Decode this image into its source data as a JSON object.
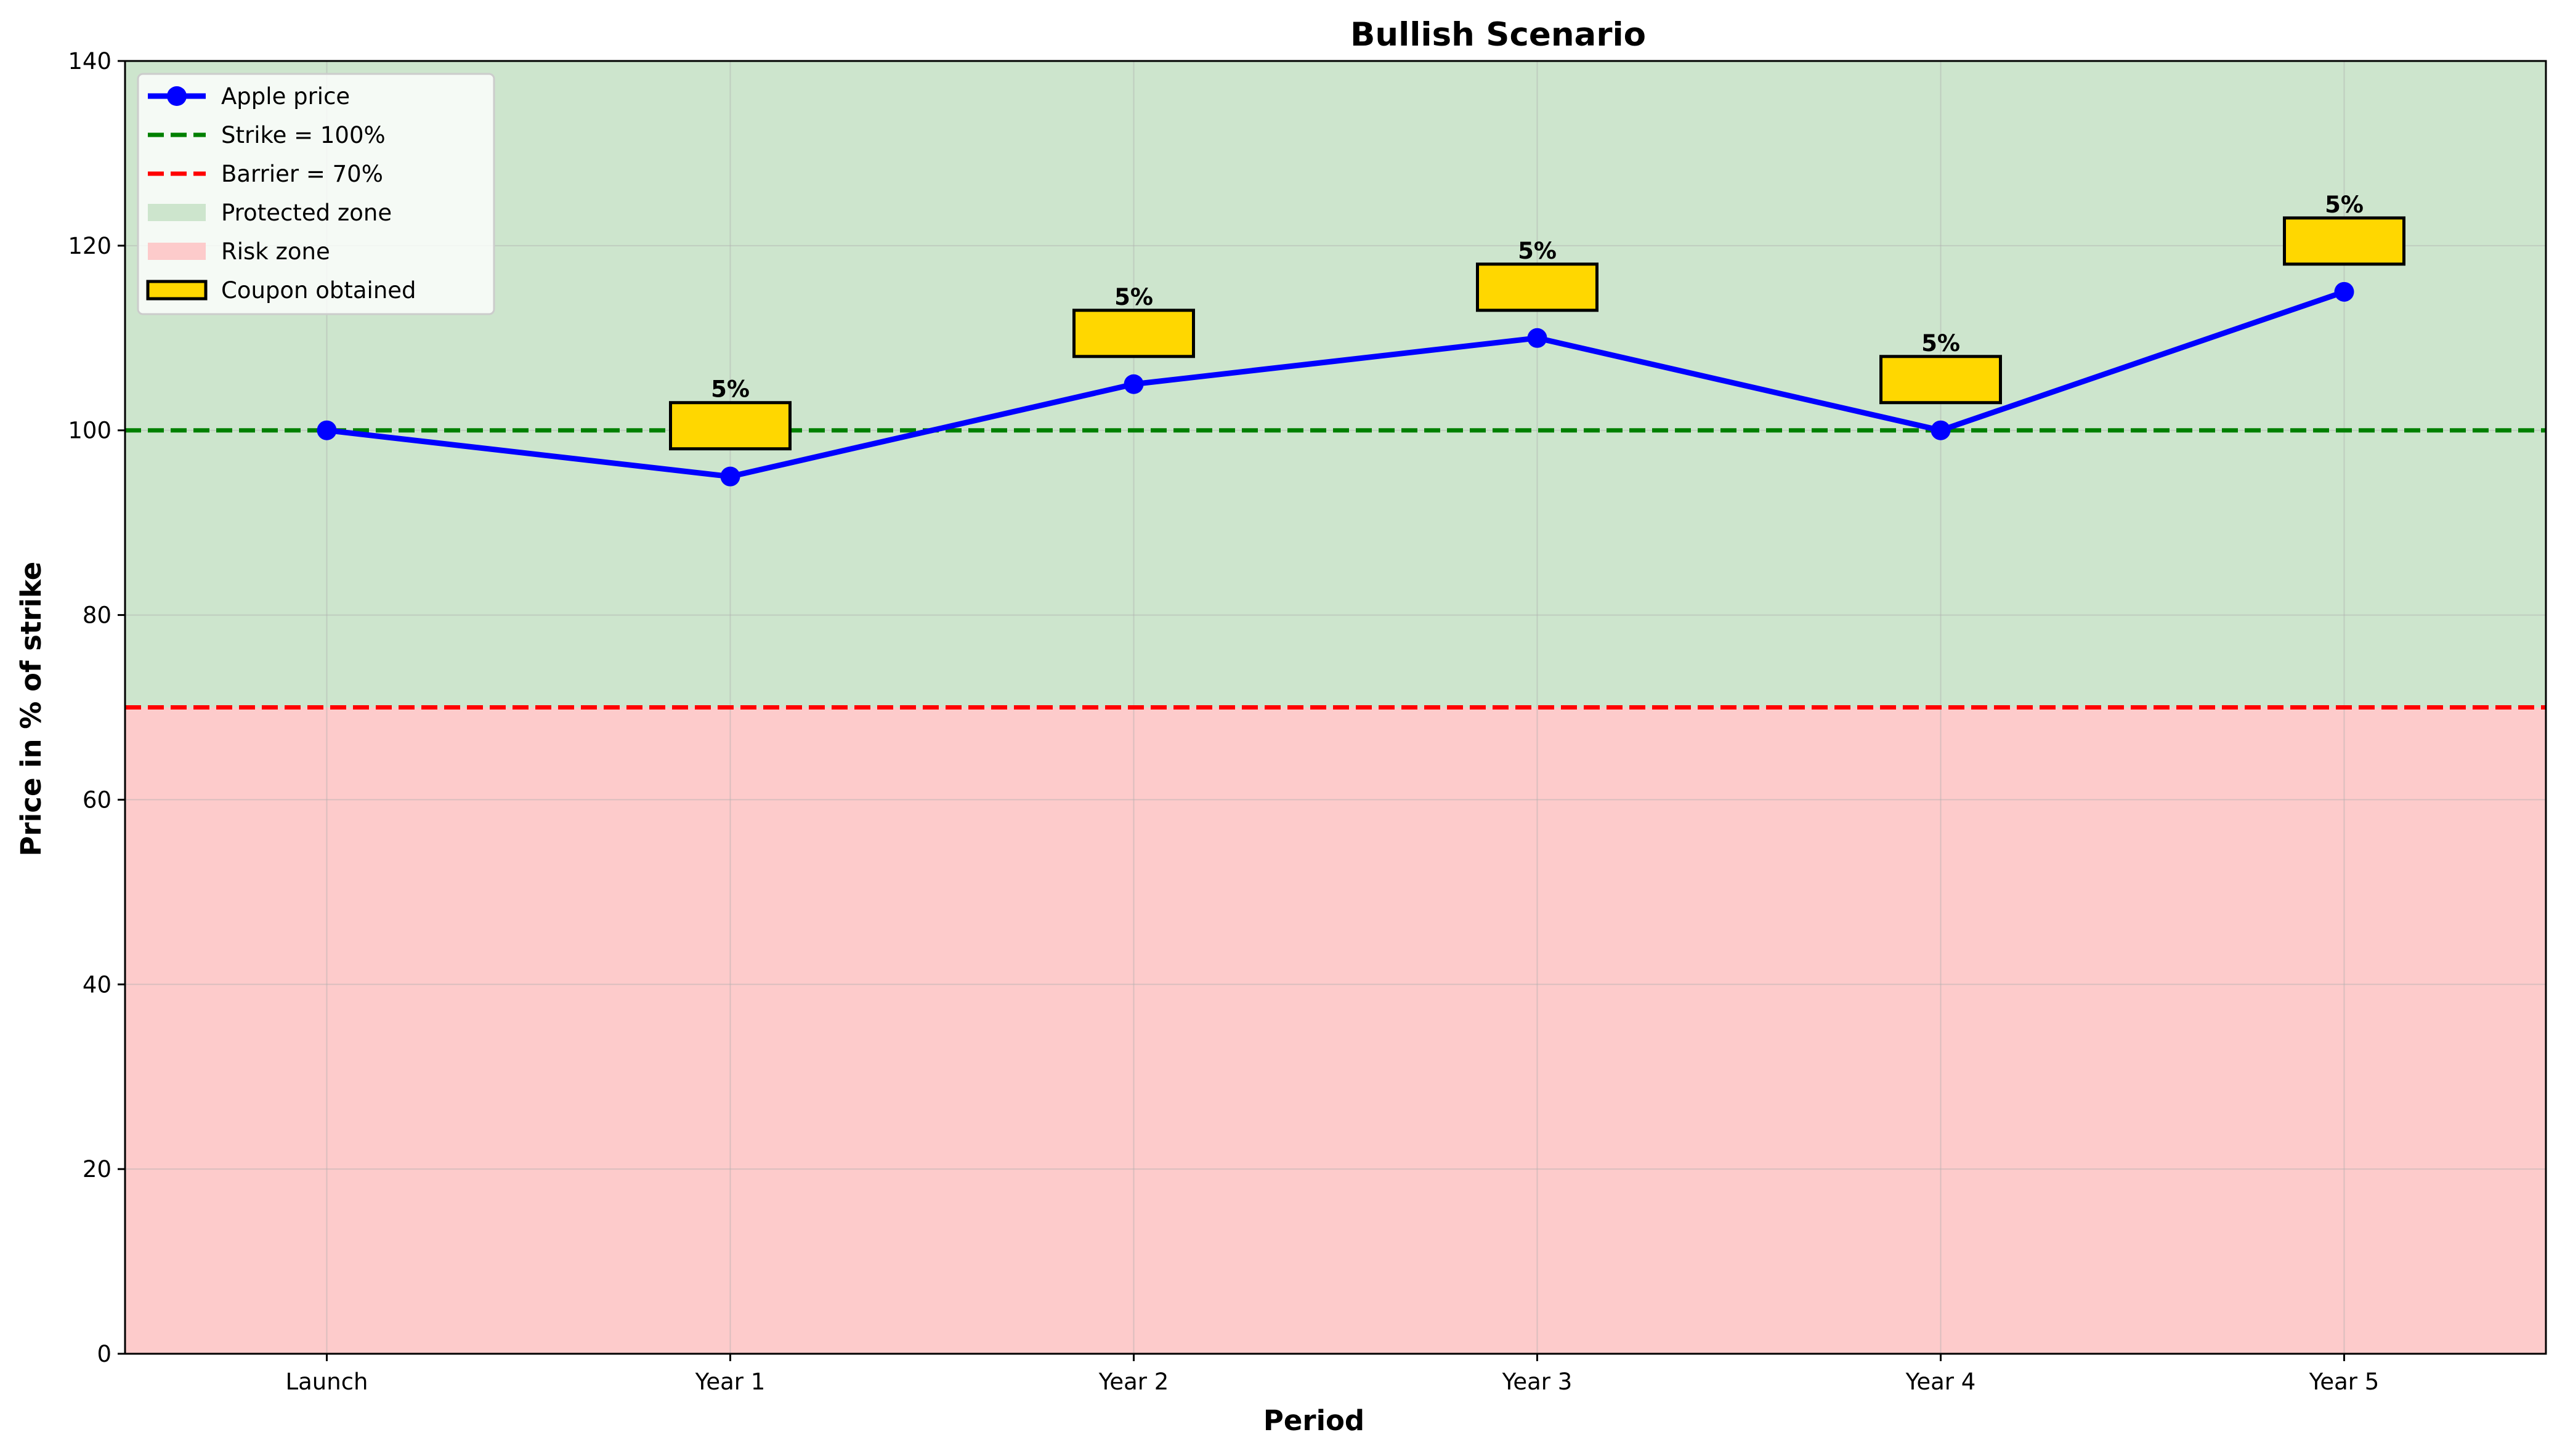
{
  "chart_data": {
    "type": "line",
    "title": "Bullish Scenario",
    "xlabel": "Period",
    "ylabel": "Price in % of strike",
    "categories": [
      "Launch",
      "Year 1",
      "Year 2",
      "Year 3",
      "Year 4",
      "Year 5"
    ],
    "ylim": [
      0,
      140
    ],
    "yticks": [
      0,
      20,
      40,
      60,
      80,
      100,
      120,
      140
    ],
    "grid": true,
    "legend_position": "top-left",
    "series": [
      {
        "name": "Apple price",
        "values": [
          100,
          95,
          105,
          110,
          100,
          115
        ],
        "color": "#0000ff"
      }
    ],
    "reference_lines": [
      {
        "name": "Strike = 100%",
        "value": 100,
        "color": "#008000",
        "style": "dashed"
      },
      {
        "name": "Barrier = 70%",
        "value": 70,
        "color": "#ff0000",
        "style": "dashed"
      }
    ],
    "zones": [
      {
        "name": "Protected zone",
        "from": 70,
        "to": 140,
        "color": "#cde5cd"
      },
      {
        "name": "Risk zone",
        "from": 0,
        "to": 70,
        "color": "#fdcbcb"
      }
    ],
    "coupons": {
      "name": "Coupon obtained",
      "color": "#ffd700",
      "items": [
        {
          "category": "Year 1",
          "bottom": 98,
          "top": 103,
          "label": "5%"
        },
        {
          "category": "Year 2",
          "bottom": 108,
          "top": 113,
          "label": "5%"
        },
        {
          "category": "Year 3",
          "bottom": 113,
          "top": 118,
          "label": "5%"
        },
        {
          "category": "Year 4",
          "bottom": 103,
          "top": 108,
          "label": "5%"
        },
        {
          "category": "Year 5",
          "bottom": 118,
          "top": 123,
          "label": "5%"
        }
      ]
    }
  }
}
